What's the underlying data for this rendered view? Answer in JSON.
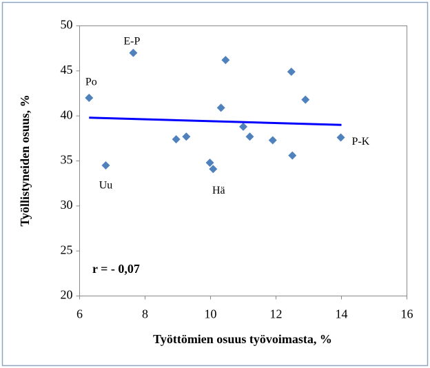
{
  "chart_data": {
    "type": "scatter",
    "x_label": "Työttömien osuus työvoimasta, %",
    "y_label": "Työllistyneiden osuus, %",
    "annotation": "r = - 0,07",
    "xlim": [
      6,
      16
    ],
    "xticks": [
      6,
      8,
      10,
      12,
      14,
      16
    ],
    "ylim": [
      20,
      50
    ],
    "yticks": [
      20,
      25,
      30,
      35,
      40,
      45,
      50
    ],
    "series": [
      {
        "color": "#4f81bd",
        "x": [
          6.29,
          7.64,
          6.8,
          8.95,
          9.26,
          9.98,
          10.08,
          10.32,
          10.46,
          11.0,
          11.2,
          11.9,
          12.47,
          12.5,
          12.9,
          13.98
        ],
        "values": [
          42,
          47,
          34.5,
          37.4,
          37.7,
          34.8,
          34.1,
          40.9,
          46.2,
          38.8,
          37.7,
          37.3,
          44.9,
          35.6,
          41.8,
          37.6
        ],
        "labels": [
          "Po",
          "E-P",
          "Uu",
          null,
          null,
          null,
          "Hä",
          null,
          null,
          null,
          null,
          null,
          null,
          null,
          null,
          "P-K"
        ]
      },
      {
        "type": "line",
        "color": "#0000ff",
        "x": [
          6.29,
          14
        ],
        "values": [
          39.8,
          39.0
        ]
      }
    ]
  }
}
